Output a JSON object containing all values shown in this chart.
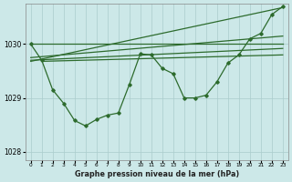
{
  "background_color": "#cce8e8",
  "grid_color": "#aacccc",
  "line_color": "#2d6b2d",
  "xlabel": "Graphe pression niveau de la mer (hPa)",
  "ylim": [
    1027.85,
    1030.75
  ],
  "xlim": [
    -0.5,
    23.5
  ],
  "yticks": [
    1028,
    1029,
    1030
  ],
  "xticks": [
    0,
    1,
    2,
    3,
    4,
    5,
    6,
    7,
    8,
    9,
    10,
    11,
    12,
    13,
    14,
    15,
    16,
    17,
    18,
    19,
    20,
    21,
    22,
    23
  ],
  "zigzag": {
    "x": [
      0,
      1,
      2,
      3,
      4,
      5,
      6,
      7,
      8,
      9,
      10,
      11,
      12,
      13,
      14,
      15,
      16,
      17,
      18,
      19,
      20,
      21,
      22,
      23
    ],
    "y": [
      1030.0,
      1029.7,
      1029.15,
      1028.9,
      1028.58,
      1028.48,
      1028.6,
      1028.68,
      1028.72,
      1029.25,
      1029.82,
      1029.8,
      1029.55,
      1029.45,
      1029.0,
      1029.0,
      1029.05,
      1029.3,
      1029.65,
      1029.8,
      1030.1,
      1030.2,
      1030.55,
      1030.7
    ]
  },
  "trend1": {
    "x": [
      0,
      23
    ],
    "y": [
      1030.0,
      1030.0
    ]
  },
  "trend2": {
    "x": [
      0,
      23
    ],
    "y": [
      1029.75,
      1030.15
    ]
  },
  "trend3": {
    "x": [
      0,
      23
    ],
    "y": [
      1029.7,
      1029.92
    ]
  },
  "trend4": {
    "x": [
      1,
      23
    ],
    "y": [
      1029.68,
      1029.8
    ]
  },
  "trend5": {
    "x": [
      0,
      23
    ],
    "y": [
      1029.68,
      1030.68
    ]
  }
}
